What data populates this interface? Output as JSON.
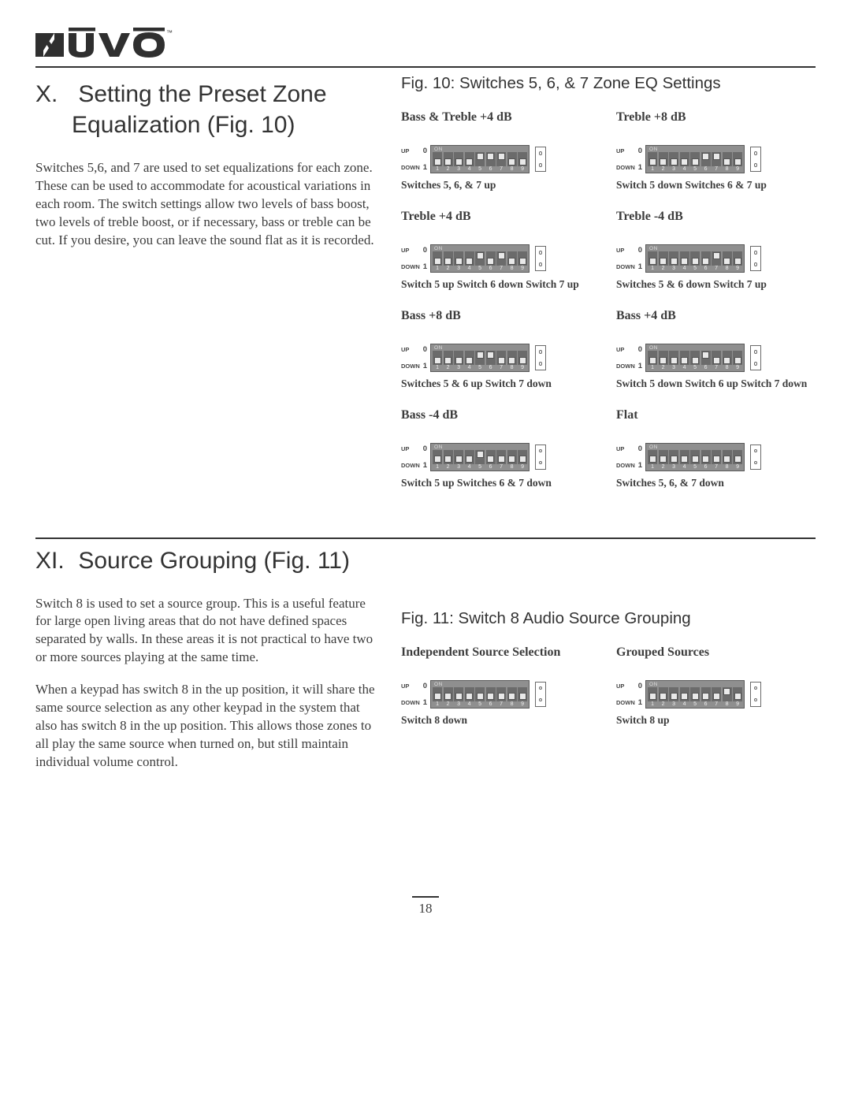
{
  "logo": {
    "text": "NUVO",
    "tm": "TM"
  },
  "section_x": {
    "num": "X.",
    "title_line1": "Setting the Preset Zone",
    "title_line2": "Equalization (Fig. 10)",
    "body": "Switches 5,6, and 7 are used to set equalizations for each zone. These can be used to accommodate for acoustical variations in each room. The switch settings allow two levels of bass boost, two levels of treble boost, or if necessary, bass or treble can be cut. If you desire, you can leave the sound flat as it is recorded."
  },
  "fig10": {
    "title": "Fig. 10: Switches 5, 6, & 7 Zone EQ Settings",
    "up_label": "UP",
    "down_label": "DOWN",
    "zero": "0",
    "one": "1",
    "on": "ON",
    "nums": [
      "1",
      "2",
      "3",
      "4",
      "5",
      "6",
      "7",
      "8",
      "9"
    ],
    "blocks": [
      {
        "title": "Bass & Treble +4 dB",
        "caption": "Switches 5, 6, & 7 up",
        "pos": [
          "down",
          "down",
          "down",
          "down",
          "up",
          "up",
          "up",
          "down",
          "down"
        ]
      },
      {
        "title": "Treble +8 dB",
        "caption": "Switch 5 down Switches 6 & 7 up",
        "pos": [
          "down",
          "down",
          "down",
          "down",
          "down",
          "up",
          "up",
          "down",
          "down"
        ]
      },
      {
        "title": "Treble +4 dB",
        "caption": "Switch 5 up  Switch 6 down Switch 7 up",
        "pos": [
          "down",
          "down",
          "down",
          "down",
          "up",
          "down",
          "up",
          "down",
          "down"
        ]
      },
      {
        "title": "Treble -4 dB",
        "caption": "Switches 5 & 6 down  Switch 7 up",
        "pos": [
          "down",
          "down",
          "down",
          "down",
          "down",
          "down",
          "up",
          "down",
          "down"
        ]
      },
      {
        "title": "Bass +8 dB",
        "caption": "Switches 5 & 6 up  Switch 7 down",
        "pos": [
          "down",
          "down",
          "down",
          "down",
          "up",
          "up",
          "down",
          "down",
          "down"
        ]
      },
      {
        "title": "Bass +4 dB",
        "caption": "Switch 5 down  Switch 6 up Switch 7 down",
        "pos": [
          "down",
          "down",
          "down",
          "down",
          "down",
          "up",
          "down",
          "down",
          "down"
        ]
      },
      {
        "title": "Bass -4 dB",
        "caption": "Switch 5 up  Switches 6 & 7 down",
        "pos": [
          "down",
          "down",
          "down",
          "down",
          "up",
          "down",
          "down",
          "down",
          "down"
        ]
      },
      {
        "title": "Flat",
        "caption": "Switches 5, 6, & 7 down",
        "pos": [
          "down",
          "down",
          "down",
          "down",
          "down",
          "down",
          "down",
          "down",
          "down"
        ]
      }
    ]
  },
  "section_xi": {
    "num": "XI.",
    "title": "Source Grouping (Fig. 11)",
    "body1": "Switch 8 is used to set a source group. This is a useful feature for large open living areas that do not have defined spaces separated by walls. In these areas it is not practical to have two or more sources playing at the same time.",
    "body2": "When a keypad has switch 8 in the up position, it will share the same source selection as any other keypad in the system that also has switch 8 in the up position. This allows those zones to all play the same source when turned on, but still maintain individual volume control."
  },
  "fig11": {
    "title": "Fig. 11: Switch 8 Audio Source Grouping",
    "blocks": [
      {
        "title": "Independent Source Selection",
        "caption": "Switch 8 down",
        "pos": [
          "down",
          "down",
          "down",
          "down",
          "down",
          "down",
          "down",
          "down",
          "down"
        ]
      },
      {
        "title": "Grouped Sources",
        "caption": "Switch 8 up",
        "pos": [
          "down",
          "down",
          "down",
          "down",
          "down",
          "down",
          "down",
          "up",
          "down"
        ]
      }
    ]
  },
  "page_number": "18",
  "colors": {
    "text": "#3a3a3a",
    "rule": "#333333",
    "dip_bg": "#8f8f8f",
    "dip_slot": "#6b6b6b",
    "dip_handle": "#e9e9e9"
  }
}
